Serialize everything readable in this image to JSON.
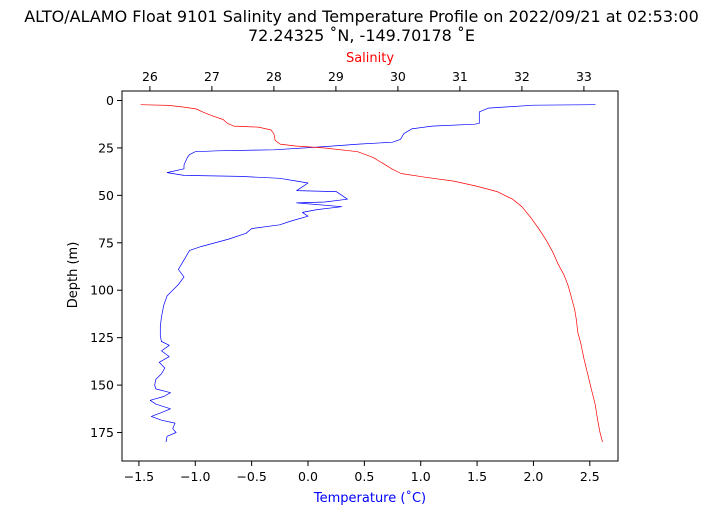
{
  "chart_data": {
    "type": "line",
    "title_line1": "ALTO/ALAMO Float 9101 Salinity and Temperature Profile on 2022/09/21 at 02:53:00",
    "title_line2": "72.24325 ˚N, -149.70178 ˚E",
    "xlabel": "Temperature (˚C)",
    "x2label": "Salinity",
    "ylabel": "Depth (m)",
    "xlim": [
      -1.65,
      2.75
    ],
    "x2lim": [
      25.55,
      33.55
    ],
    "ylim": [
      190,
      -5
    ],
    "y_inverted": true,
    "grid": false,
    "xticks": [
      -1.5,
      -1.0,
      -0.5,
      0.0,
      0.5,
      1.0,
      1.5,
      2.0,
      2.5
    ],
    "xtick_labels": [
      "−1.5",
      "−1.0",
      "−0.5",
      "0.0",
      "0.5",
      "1.0",
      "1.5",
      "2.0",
      "2.5"
    ],
    "x2ticks": [
      26,
      27,
      28,
      29,
      30,
      31,
      32,
      33
    ],
    "x2tick_labels": [
      "26",
      "27",
      "28",
      "29",
      "30",
      "31",
      "32",
      "33"
    ],
    "yticks": [
      0,
      25,
      50,
      75,
      100,
      125,
      150,
      175
    ],
    "ytick_labels": [
      "0",
      "25",
      "50",
      "75",
      "100",
      "125",
      "150",
      "175"
    ],
    "colors": {
      "temperature": "#0000ff",
      "salinity": "#ff0000",
      "xlabel": "#0000ff",
      "x2label": "#ff0000"
    },
    "series": [
      {
        "axis": "x",
        "color": "#0000ff",
        "points": [
          [
            2.55,
            2.2
          ],
          [
            2.0,
            2.5
          ],
          [
            1.6,
            4.0
          ],
          [
            1.52,
            6.0
          ],
          [
            1.52,
            12.0
          ],
          [
            1.48,
            12.5
          ],
          [
            1.1,
            13.5
          ],
          [
            0.92,
            15.0
          ],
          [
            0.85,
            17.5
          ],
          [
            0.82,
            20.5
          ],
          [
            0.75,
            22.0
          ],
          [
            0.45,
            23.0
          ],
          [
            0.1,
            24.5
          ],
          [
            -0.3,
            26.0
          ],
          [
            -0.8,
            26.5
          ],
          [
            -1.0,
            27.0
          ],
          [
            -1.05,
            28.5
          ],
          [
            -1.07,
            30.0
          ],
          [
            -1.1,
            34.0
          ],
          [
            -1.1,
            36.0
          ],
          [
            -1.25,
            38.0
          ],
          [
            -1.1,
            39.5
          ],
          [
            -0.6,
            40.0
          ],
          [
            -0.25,
            41.0
          ],
          [
            -0.1,
            42.5
          ],
          [
            0.0,
            43.5
          ],
          [
            -0.05,
            45.5
          ],
          [
            -0.1,
            47.5
          ],
          [
            0.25,
            48.0
          ],
          [
            0.35,
            52.0
          ],
          [
            0.15,
            53.5
          ],
          [
            -0.1,
            54.0
          ],
          [
            0.3,
            56.0
          ],
          [
            0.08,
            57.5
          ],
          [
            -0.05,
            59.0
          ],
          [
            0.0,
            61.0
          ],
          [
            -0.15,
            63.5
          ],
          [
            -0.25,
            65.5
          ],
          [
            -0.5,
            67.5
          ],
          [
            -0.55,
            70.0
          ],
          [
            -0.7,
            73.0
          ],
          [
            -0.95,
            77.0
          ],
          [
            -1.05,
            79.0
          ],
          [
            -1.1,
            84.0
          ],
          [
            -1.15,
            89.0
          ],
          [
            -1.1,
            93.0
          ],
          [
            -1.15,
            97.0
          ],
          [
            -1.2,
            100.0
          ],
          [
            -1.25,
            103.0
          ],
          [
            -1.28,
            108.0
          ],
          [
            -1.3,
            114.0
          ],
          [
            -1.31,
            119.0
          ],
          [
            -1.31,
            124.0
          ],
          [
            -1.3,
            127.0
          ],
          [
            -1.23,
            129.0
          ],
          [
            -1.3,
            132.0
          ],
          [
            -1.23,
            135.0
          ],
          [
            -1.32,
            138.0
          ],
          [
            -1.27,
            141.0
          ],
          [
            -1.3,
            144.0
          ],
          [
            -1.35,
            147.0
          ],
          [
            -1.36,
            150.0
          ],
          [
            -1.35,
            152.0
          ],
          [
            -1.22,
            154.0
          ],
          [
            -1.28,
            156.0
          ],
          [
            -1.4,
            158.0
          ],
          [
            -1.35,
            160.0
          ],
          [
            -1.22,
            162.5
          ],
          [
            -1.3,
            164.5
          ],
          [
            -1.39,
            166.5
          ],
          [
            -1.3,
            168.5
          ],
          [
            -1.18,
            170.0
          ],
          [
            -1.2,
            173.0
          ],
          [
            -1.17,
            175.0
          ],
          [
            -1.25,
            177.0
          ],
          [
            -1.26,
            180.0
          ]
        ]
      },
      {
        "axis": "x2",
        "color": "#ff0000",
        "points": [
          [
            25.85,
            2.2
          ],
          [
            26.3,
            2.6
          ],
          [
            26.55,
            3.5
          ],
          [
            26.75,
            4.5
          ],
          [
            26.85,
            6.0
          ],
          [
            27.0,
            8.0
          ],
          [
            27.18,
            10.0
          ],
          [
            27.25,
            12.0
          ],
          [
            27.35,
            13.5
          ],
          [
            27.75,
            14.0
          ],
          [
            27.95,
            15.5
          ],
          [
            28.0,
            17.5
          ],
          [
            28.02,
            21.0
          ],
          [
            28.1,
            23.0
          ],
          [
            28.35,
            24.0
          ],
          [
            28.8,
            25.0
          ],
          [
            29.35,
            27.0
          ],
          [
            29.6,
            30.0
          ],
          [
            29.75,
            33.0
          ],
          [
            29.9,
            36.0
          ],
          [
            30.05,
            38.5
          ],
          [
            30.45,
            40.5
          ],
          [
            30.9,
            42.5
          ],
          [
            31.25,
            45.0
          ],
          [
            31.6,
            48.0
          ],
          [
            31.85,
            52.0
          ],
          [
            32.0,
            56.0
          ],
          [
            32.15,
            62.0
          ],
          [
            32.28,
            68.0
          ],
          [
            32.4,
            74.0
          ],
          [
            32.5,
            80.0
          ],
          [
            32.58,
            86.0
          ],
          [
            32.68,
            92.0
          ],
          [
            32.75,
            98.0
          ],
          [
            32.8,
            104.0
          ],
          [
            32.85,
            110.0
          ],
          [
            32.88,
            116.0
          ],
          [
            32.9,
            122.0
          ],
          [
            32.95,
            128.0
          ],
          [
            33.0,
            136.0
          ],
          [
            33.06,
            144.0
          ],
          [
            33.12,
            152.0
          ],
          [
            33.18,
            160.0
          ],
          [
            33.22,
            168.0
          ],
          [
            33.26,
            175.0
          ],
          [
            33.3,
            180.0
          ]
        ]
      }
    ]
  }
}
